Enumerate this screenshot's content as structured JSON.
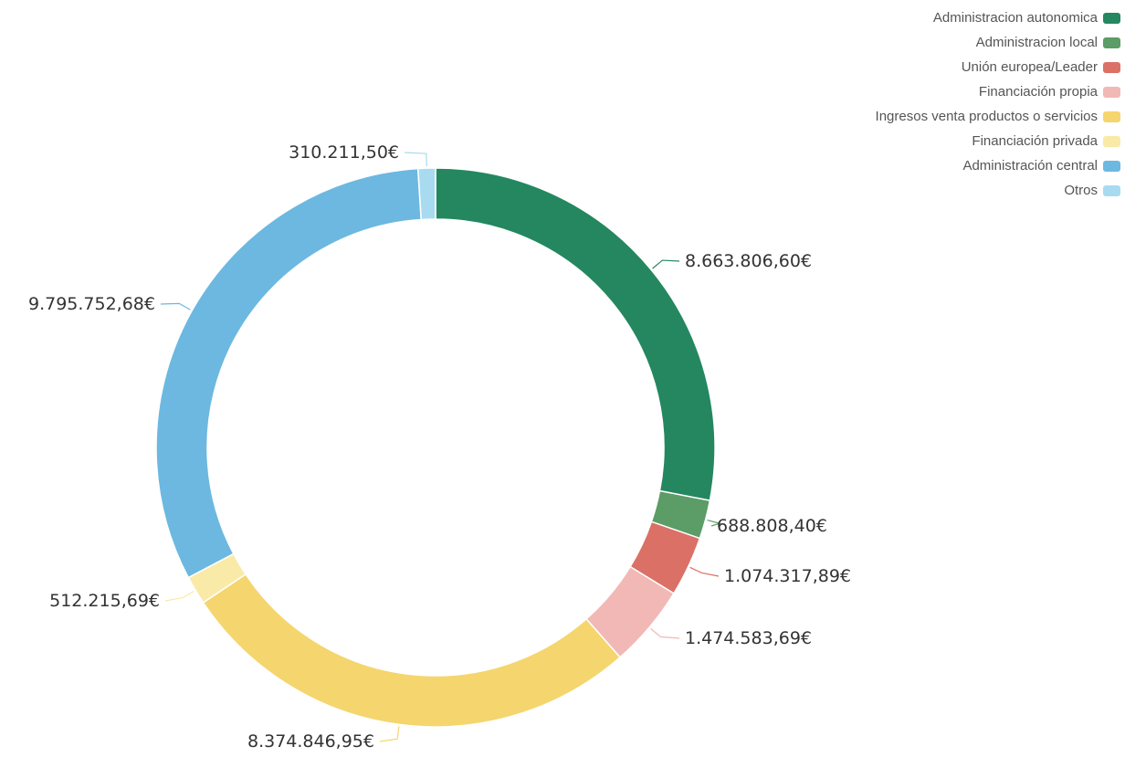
{
  "chart_data": {
    "type": "pie",
    "donut": true,
    "legend_position": "top-right",
    "series": [
      {
        "name": "Administracion autonomica",
        "value": 8663806.6,
        "label": "8.663.806,60€",
        "color": "#248760"
      },
      {
        "name": "Administracion local",
        "value": 688808.4,
        "label": "688.808,40€",
        "color": "#5c9c66"
      },
      {
        "name": "Unión europea/Leader",
        "value": 1074317.89,
        "label": "1.074.317,89€",
        "color": "#db7066"
      },
      {
        "name": "Financiación propia",
        "value": 1474583.69,
        "label": "1.474.583,69€",
        "color": "#f2b8b5"
      },
      {
        "name": "Ingresos venta productos o servicios",
        "value": 8374846.95,
        "label": "8.374.846,95€",
        "color": "#f5d56e"
      },
      {
        "name": "Financiación privada",
        "value": 512215.69,
        "label": "512.215,69€",
        "color": "#faeaa8"
      },
      {
        "name": "Administración central",
        "value": 9795752.68,
        "label": "9.795.752,68€",
        "color": "#6cb8e0"
      },
      {
        "name": "Otros",
        "value": 310211.5,
        "label": "310.211,50€",
        "color": "#a9dbf0"
      }
    ]
  }
}
